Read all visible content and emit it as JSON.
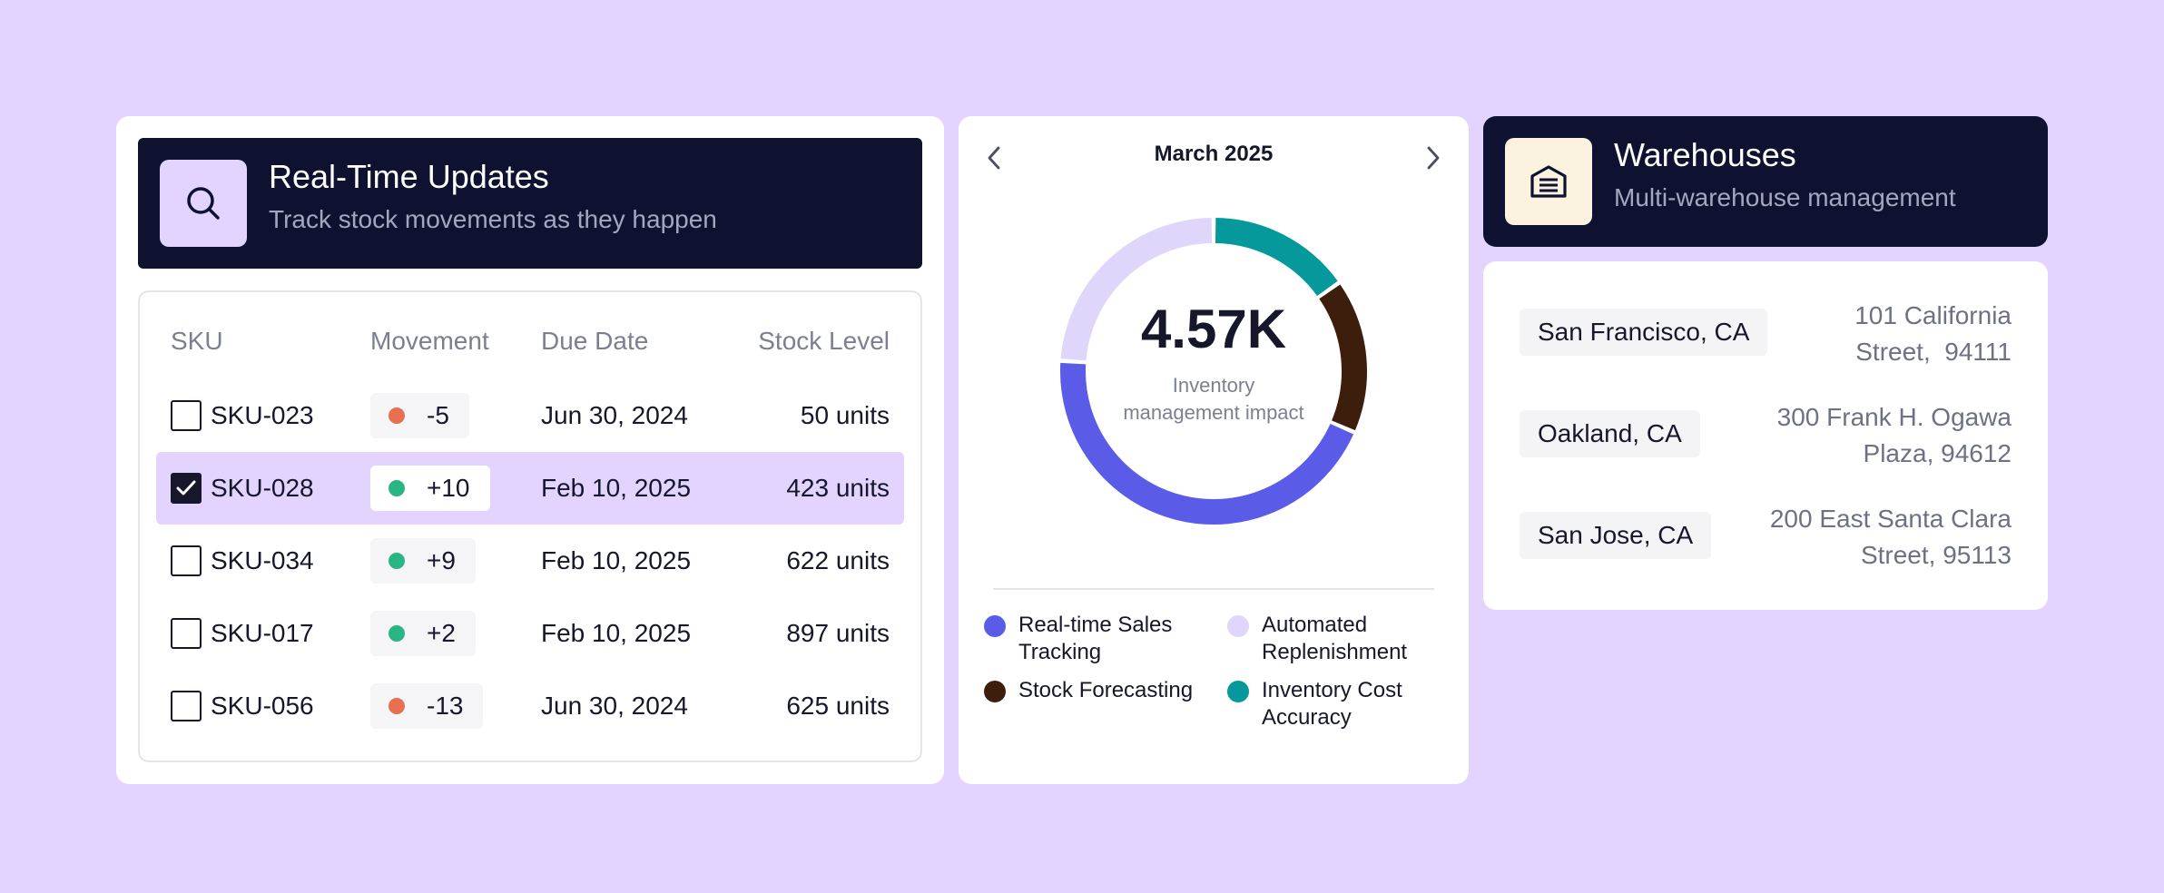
{
  "updates": {
    "title": "Real-Time Updates",
    "subtitle": "Track stock movements as they happen",
    "icon": "search-icon",
    "columns": {
      "sku": "SKU",
      "movement": "Movement",
      "due_date": "Due Date",
      "stock_level": "Stock Level"
    },
    "rows": [
      {
        "sku": "SKU-023",
        "movement": "-5",
        "due_date": "Jun 30, 2024",
        "stock": "50 units",
        "checked": false,
        "trend": "down"
      },
      {
        "sku": "SKU-028",
        "movement": "+10",
        "due_date": "Feb 10, 2025",
        "stock": "423 units",
        "checked": true,
        "trend": "up"
      },
      {
        "sku": "SKU-034",
        "movement": "+9",
        "due_date": "Feb 10, 2025",
        "stock": "622 units",
        "checked": false,
        "trend": "up"
      },
      {
        "sku": "SKU-017",
        "movement": "+2",
        "due_date": "Feb 10, 2025",
        "stock": "897 units",
        "checked": false,
        "trend": "up"
      },
      {
        "sku": "SKU-056",
        "movement": "-13",
        "due_date": "Jun 30, 2024",
        "stock": "625 units",
        "checked": false,
        "trend": "down"
      }
    ]
  },
  "chart": {
    "month": "March 2025",
    "prev_icon": "chevron-left-icon",
    "next_icon": "chevron-right-icon",
    "center_value": "4.57K",
    "center_label": "Inventory management impact",
    "legend": [
      {
        "label": "Real-time Sales Tracking",
        "color": "#5A5CE8"
      },
      {
        "label": "Automated Replenishment",
        "color": "#E0D6FB"
      },
      {
        "label": "Stock Forecasting",
        "color": "#3D1E0C"
      },
      {
        "label": "Inventory Cost Accuracy",
        "color": "#05999C"
      }
    ]
  },
  "chart_data": {
    "type": "pie",
    "donut": true,
    "center_value": "4.57K",
    "center_label": "Inventory management impact",
    "title": "March 2025",
    "categories": [
      "Real-time Sales Tracking",
      "Automated Replenishment",
      "Stock Forecasting",
      "Inventory Cost Accuracy"
    ],
    "values": [
      41,
      22,
      15,
      14
    ],
    "colors": [
      "#5A5CE8",
      "#E0D6FB",
      "#3D1E0C",
      "#05999C"
    ]
  },
  "warehouses": {
    "title": "Warehouses",
    "subtitle": "Multi-warehouse management",
    "icon": "warehouse-icon",
    "items": [
      {
        "city": "San Francisco, CA",
        "address_line1": "101 California",
        "address_line2": "Street,  94111"
      },
      {
        "city": "Oakland, CA",
        "address_line1": "300 Frank H. Ogawa",
        "address_line2": "Plaza, 94612"
      },
      {
        "city": "San Jose, CA",
        "address_line1": "200 East Santa Clara",
        "address_line2": "Street, 95113"
      }
    ]
  },
  "colors": {
    "background": "#E2D4FE",
    "header_dark": "#0E1230",
    "up": "#2BB583",
    "down": "#E8704F",
    "selected_row": "#E2D4FE"
  }
}
